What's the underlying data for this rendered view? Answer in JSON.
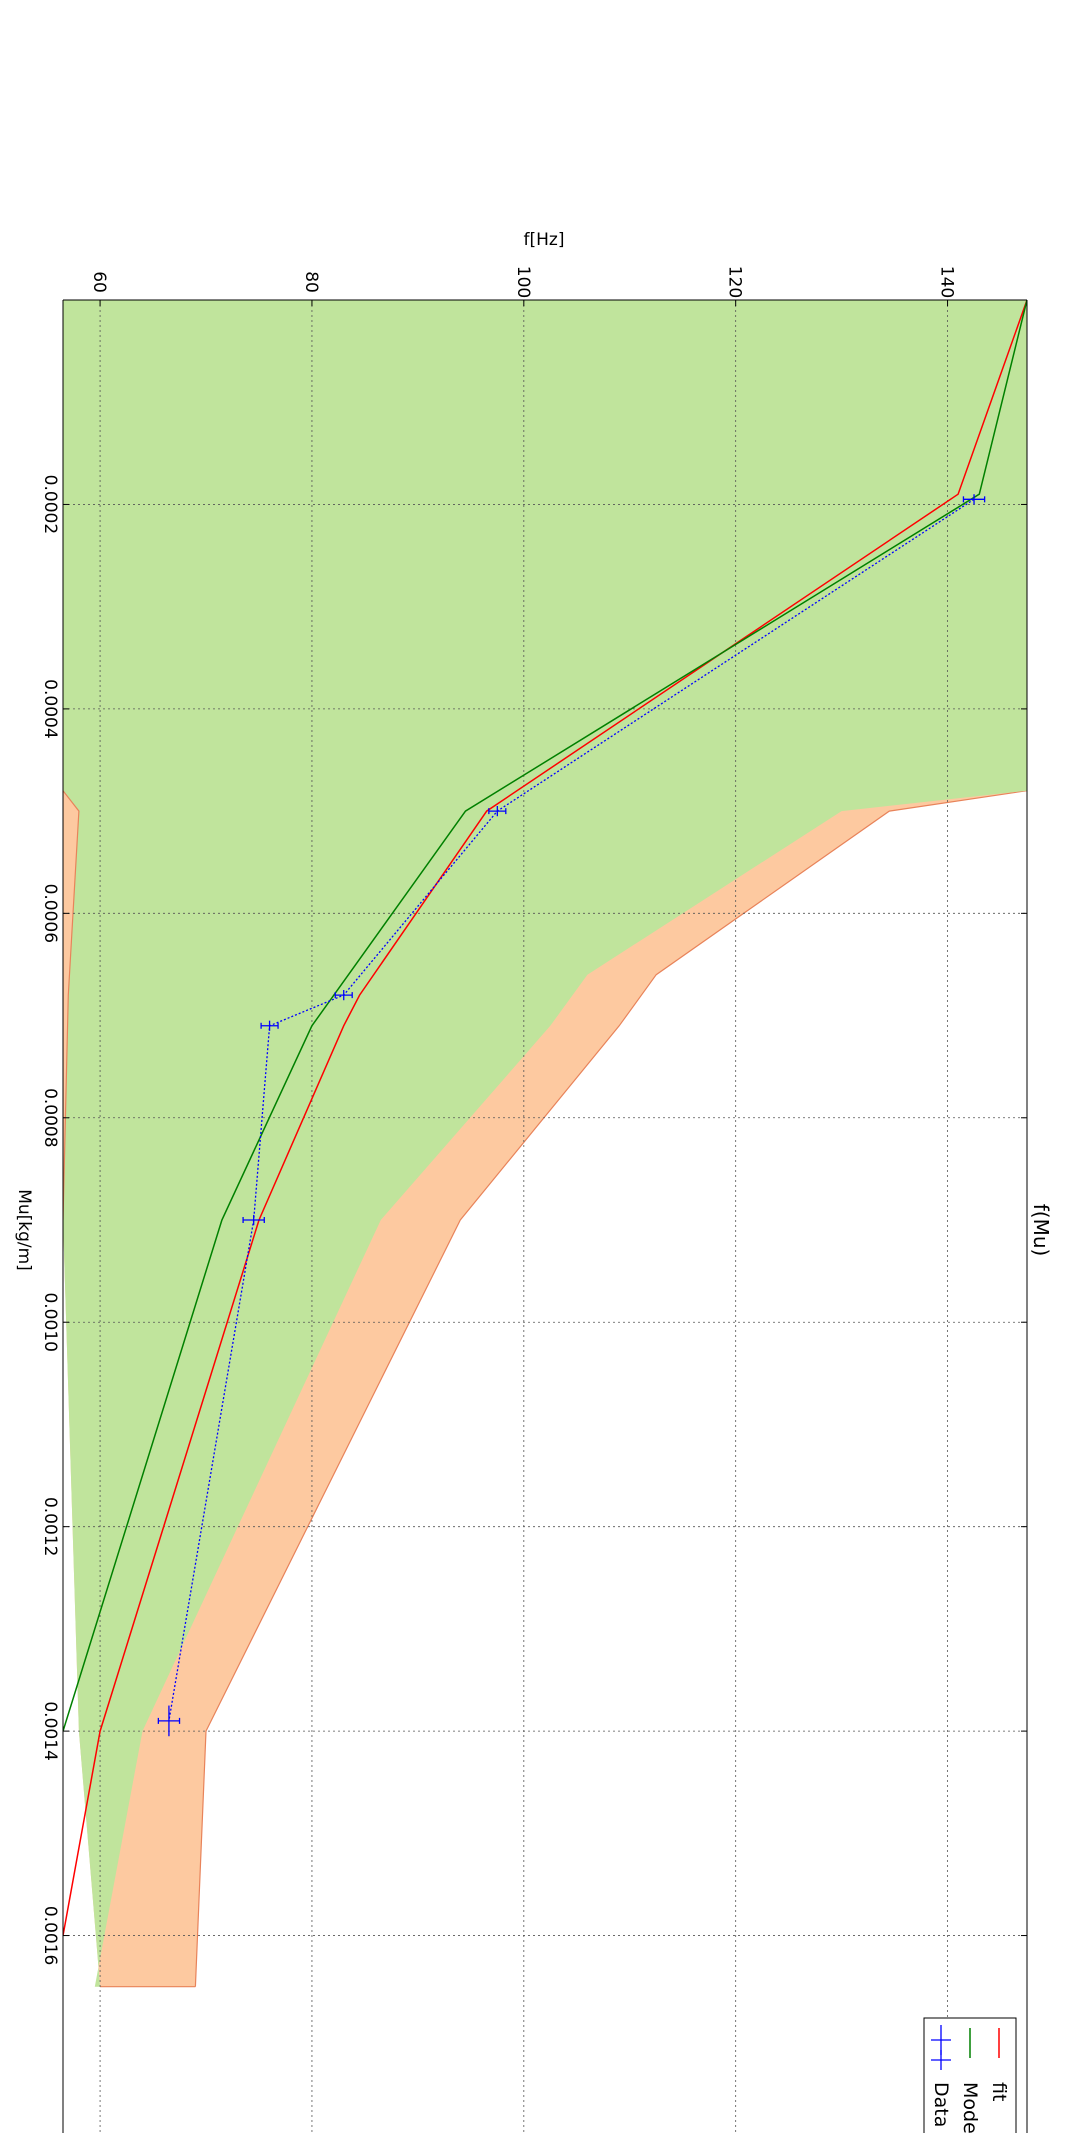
{
  "chart_data": {
    "type": "line",
    "title": "f(Mu)",
    "xlabel": "Mu[kg/m]",
    "ylabel": "f[Hz]",
    "orientation": "rotated 90 degrees clockwise",
    "xlim": [
      0.0,
      0.0018
    ],
    "ylim": [
      56.5,
      147.5
    ],
    "x_ticks": [
      "0.0002",
      "0.0004",
      "0.0006",
      "0.0008",
      "0.0010",
      "0.0012",
      "0.0014",
      "0.0016"
    ],
    "x_tick_values": [
      0.0002,
      0.0004,
      0.0006,
      0.0008,
      0.001,
      0.0012,
      0.0014,
      0.0016
    ],
    "y_ticks": [
      "60",
      "80",
      "100",
      "120",
      "140"
    ],
    "y_tick_values": [
      60,
      80,
      100,
      120,
      140
    ],
    "grid": true,
    "legend_placement": "lower-right",
    "series": [
      {
        "name": "fit",
        "kind": "line",
        "color": "#ff0000",
        "x": [
          0.0,
          0.00019,
          0.0005,
          0.00068,
          0.00071,
          0.0009,
          0.0014,
          0.0016
        ],
        "y": [
          147.5,
          141.0,
          96.5,
          84.5,
          83.0,
          75.0,
          60.0,
          56.5
        ]
      },
      {
        "name": "Model",
        "kind": "line",
        "color": "#008000",
        "band_color": "#c0e49c",
        "x": [
          0.0,
          0.00019,
          0.0005,
          0.00071,
          0.0009,
          0.0014
        ],
        "y": [
          147.5,
          143.0,
          94.5,
          80.0,
          71.5,
          56.5
        ],
        "band_low": [
          {
            "x": 0.0,
            "y": 56.5
          },
          {
            "x": 0.00048,
            "y": 56.5
          },
          {
            "x": 0.00165,
            "y": 56.5
          }
        ],
        "band_high": [
          {
            "x": 0.0,
            "y": 147.5
          },
          {
            "x": 0.00048,
            "y": 147.5
          },
          {
            "x": 0.0005,
            "y": 130.0
          },
          {
            "x": 0.00066,
            "y": 106.0
          },
          {
            "x": 0.00071,
            "y": 102.5
          },
          {
            "x": 0.0009,
            "y": 86.5
          },
          {
            "x": 0.0014,
            "y": 64.0
          },
          {
            "x": 0.00165,
            "y": 59.5
          }
        ]
      },
      {
        "name": "Data",
        "kind": "errorbar",
        "color": "#0000ff",
        "x": [
          0.000195,
          0.0005,
          0.00068,
          0.00071,
          0.0009,
          0.00139
        ],
        "y": [
          142.5,
          97.5,
          83.0,
          76.0,
          74.5,
          66.5
        ],
        "yerr": [
          1.0,
          0.8,
          0.8,
          0.8,
          1.0,
          1.0
        ],
        "xerr": [
          5e-06,
          5e-06,
          5e-06,
          5e-06,
          5e-06,
          1.5e-05
        ]
      }
    ],
    "model_uncertainty_band": {
      "color": "#fdc9a0",
      "edge_color": "#e8835a",
      "low": [
        {
          "x": 0.0005,
          "y": 58.0
        },
        {
          "x": 0.00068,
          "y": 57.0
        },
        {
          "x": 0.0009,
          "y": 56.5
        }
      ],
      "high": [
        {
          "x": 0.00048,
          "y": 147.5
        },
        {
          "x": 0.0005,
          "y": 134.5
        },
        {
          "x": 0.00066,
          "y": 112.5
        },
        {
          "x": 0.00071,
          "y": 109.0
        },
        {
          "x": 0.0009,
          "y": 94.0
        },
        {
          "x": 0.0014,
          "y": 70.0
        },
        {
          "x": 0.00165,
          "y": 69.0
        }
      ],
      "low_right": [
        {
          "x": 0.0014,
          "y": 58.0
        },
        {
          "x": 0.00165,
          "y": 60.0
        }
      ]
    }
  }
}
